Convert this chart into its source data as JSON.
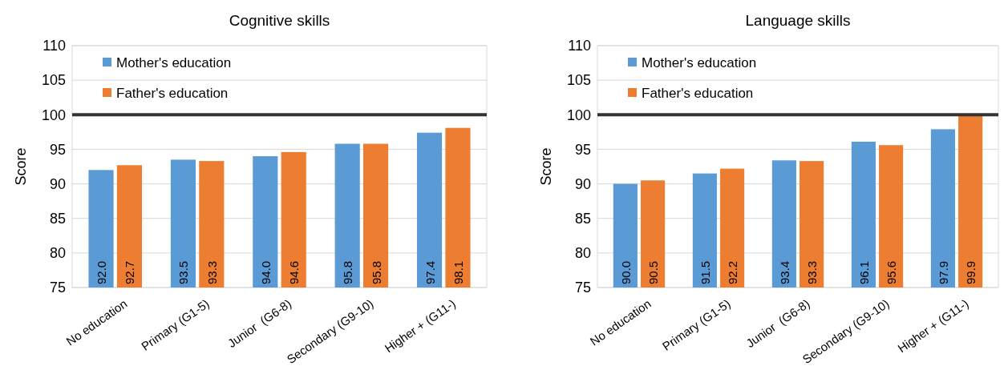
{
  "chart_data": [
    {
      "type": "bar",
      "title": "Cognitive skills",
      "ylabel": "Score",
      "categories": [
        "No education",
        "Primary (G1-5)",
        "Junior  (G6-8)",
        "Secondary (G9-10)",
        "Higher + (G11-)"
      ],
      "series": [
        {
          "name": "Mother's education",
          "color": "#5b9bd5",
          "values": [
            92.0,
            93.5,
            94.0,
            95.8,
            97.4
          ],
          "value_labels": [
            "92.0",
            "93.5",
            "94.0",
            "95.8",
            "97.4"
          ]
        },
        {
          "name": "Father's education",
          "color": "#ed7d31",
          "values": [
            92.7,
            93.3,
            94.6,
            95.8,
            98.1
          ],
          "value_labels": [
            "92.7",
            "93.3",
            "94.6",
            "95.8",
            "98.1"
          ]
        }
      ],
      "ylim": [
        75,
        110
      ],
      "yticks": [
        75,
        80,
        85,
        90,
        95,
        100,
        105,
        110
      ],
      "grid": "y",
      "legend": "top left",
      "ref_lines": [
        {
          "axis": "y",
          "value": 100,
          "color": "#333333"
        }
      ]
    },
    {
      "type": "bar",
      "title": "Language skills",
      "ylabel": "Score",
      "categories": [
        "No education",
        "Primary (G1-5)",
        "Junior  (G6-8)",
        "Secondary (G9-10)",
        "Higher + (G11-)"
      ],
      "series": [
        {
          "name": "Mother's education",
          "color": "#5b9bd5",
          "values": [
            90.0,
            91.5,
            93.4,
            96.1,
            97.9
          ],
          "value_labels": [
            "90.0",
            "91.5",
            "93.4",
            "96.1",
            "97.9"
          ]
        },
        {
          "name": "Father's education",
          "color": "#ed7d31",
          "values": [
            90.5,
            92.2,
            93.3,
            95.6,
            99.9
          ],
          "value_labels": [
            "90.5",
            "92.2",
            "93.3",
            "95.6",
            "99.9"
          ]
        }
      ],
      "ylim": [
        75,
        110
      ],
      "yticks": [
        75,
        80,
        85,
        90,
        95,
        100,
        105,
        110
      ],
      "grid": "y",
      "legend": "top left",
      "ref_lines": [
        {
          "axis": "y",
          "value": 100,
          "color": "#333333"
        }
      ]
    }
  ]
}
